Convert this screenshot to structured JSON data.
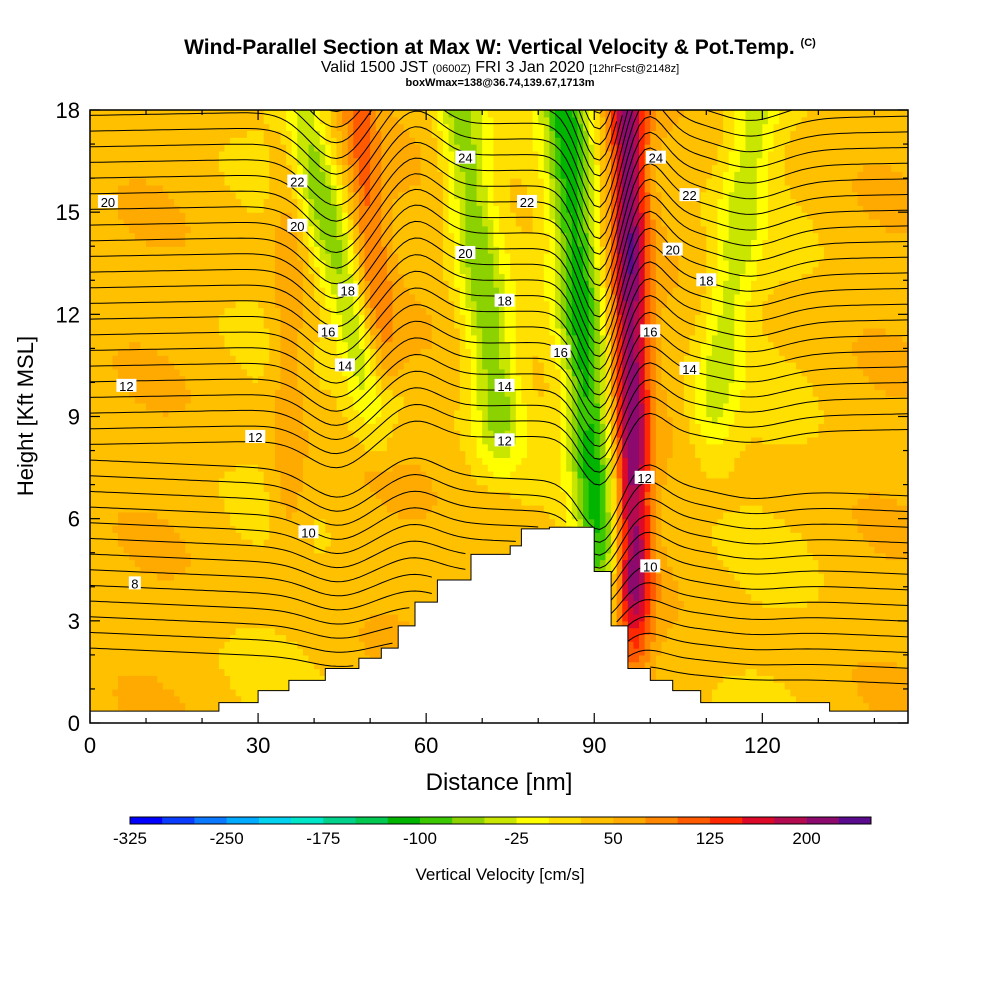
{
  "header": {
    "title": "Wind-Parallel Section at Max W: Vertical Velocity & Pot.Temp.",
    "copyright": "(C)",
    "valid_prefix": "Valid 1500 JST",
    "valid_zulu": "(0600Z)",
    "valid_date": "FRI 3 Jan 2020",
    "forecast": "[12hrFcst@2148z]",
    "boxinfo": "boxWmax=138@36.74,139.67,1713m"
  },
  "chart_data": {
    "type": "heatmap",
    "xlabel": "Distance [nm]",
    "ylabel": "Height [Kft MSL]",
    "xlim": [
      0,
      146
    ],
    "ylim": [
      0,
      18
    ],
    "x_ticks": [
      0,
      30,
      60,
      90,
      120
    ],
    "y_ticks": [
      0,
      3,
      6,
      9,
      12,
      15,
      18
    ],
    "grid": false,
    "colorbar": {
      "label": "Vertical Velocity [cm/s]",
      "levels": [
        -325,
        -300,
        -275,
        -250,
        -225,
        -200,
        -175,
        -150,
        -125,
        -100,
        -75,
        -50,
        -25,
        0,
        25,
        50,
        75,
        100,
        125,
        150,
        175,
        200,
        225
      ],
      "tick_labels": [
        "-325",
        "-250",
        "-175",
        "-100",
        "-25",
        "50",
        "125",
        "200"
      ],
      "colors": [
        "#0000ff",
        "#0a3cff",
        "#0a78ff",
        "#00aaff",
        "#00d2f0",
        "#00e6c8",
        "#00d28c",
        "#00c850",
        "#00b400",
        "#3cc800",
        "#8cd200",
        "#c8e600",
        "#ffff00",
        "#ffe000",
        "#ffc000",
        "#ffaa00",
        "#ff8800",
        "#ff5a00",
        "#ff2800",
        "#dc0a28",
        "#b40a50",
        "#8c0a6e",
        "#5a0a8c"
      ]
    },
    "velocity_features": [
      {
        "kind": "downdraft",
        "x_top": 37,
        "x_bottom": 51,
        "y_bottom": 9.5,
        "peak_cm_s": -60
      },
      {
        "kind": "updraft",
        "x_top": 48,
        "x_bottom": 52,
        "y_bottom": 10.0,
        "peak_cm_s": 100
      },
      {
        "kind": "downdraft",
        "x_top": 66,
        "x_bottom": 73,
        "y_bottom": 9.0,
        "peak_cm_s": -60
      },
      {
        "kind": "downdraft",
        "x_top": 85,
        "x_bottom": 91,
        "y_bottom": 5.0,
        "peak_cm_s": -110
      },
      {
        "kind": "updraft",
        "x_top": 96,
        "x_bottom": 97,
        "y_bottom": 4.0,
        "peak_cm_s": 210
      },
      {
        "kind": "downdraft",
        "x_top": 119,
        "x_bottom": 111,
        "y_bottom": 9.0,
        "peak_cm_s": -30
      },
      {
        "kind": "updraft",
        "x_top": 35.5,
        "x_bottom": 35.5,
        "y_bottom": 6.5,
        "peak_cm_s": 75
      }
    ],
    "terrain": [
      [
        0,
        0.35
      ],
      [
        23,
        0.35
      ],
      [
        23,
        0.6
      ],
      [
        30,
        0.6
      ],
      [
        30,
        0.95
      ],
      [
        35.5,
        0.95
      ],
      [
        35.5,
        1.25
      ],
      [
        42,
        1.25
      ],
      [
        42,
        1.6
      ],
      [
        48,
        1.6
      ],
      [
        48,
        1.9
      ],
      [
        52,
        1.9
      ],
      [
        52,
        2.2
      ],
      [
        55,
        2.2
      ],
      [
        55,
        2.85
      ],
      [
        58,
        2.85
      ],
      [
        58,
        3.55
      ],
      [
        62,
        3.55
      ],
      [
        62,
        4.2
      ],
      [
        68,
        4.2
      ],
      [
        68,
        4.95
      ],
      [
        75,
        4.95
      ],
      [
        75,
        5.2
      ],
      [
        77,
        5.2
      ],
      [
        77,
        5.7
      ],
      [
        82,
        5.7
      ],
      [
        82,
        5.75
      ],
      [
        90,
        5.75
      ],
      [
        90,
        4.45
      ],
      [
        93,
        4.45
      ],
      [
        93,
        2.85
      ],
      [
        96,
        2.85
      ],
      [
        96,
        1.6
      ],
      [
        100,
        1.6
      ],
      [
        100,
        1.25
      ],
      [
        104,
        1.25
      ],
      [
        104,
        0.95
      ],
      [
        109,
        0.95
      ],
      [
        109,
        0.6
      ],
      [
        132,
        0.6
      ],
      [
        132,
        0.35
      ],
      [
        146,
        0.35
      ]
    ],
    "theta_contour_labels": [
      {
        "text": "20",
        "x": 3.2,
        "y": 15.3
      },
      {
        "text": "22",
        "x": 37,
        "y": 15.9
      },
      {
        "text": "20",
        "x": 37,
        "y": 14.6
      },
      {
        "text": "18",
        "x": 46,
        "y": 12.7
      },
      {
        "text": "16",
        "x": 42.5,
        "y": 11.5
      },
      {
        "text": "14",
        "x": 45.5,
        "y": 10.5
      },
      {
        "text": "12",
        "x": 6.5,
        "y": 9.9
      },
      {
        "text": "12",
        "x": 29.5,
        "y": 8.4
      },
      {
        "text": "10",
        "x": 39,
        "y": 5.6
      },
      {
        "text": "8",
        "x": 8,
        "y": 4.1
      },
      {
        "text": "24",
        "x": 67,
        "y": 16.6
      },
      {
        "text": "22",
        "x": 78,
        "y": 15.3
      },
      {
        "text": "20",
        "x": 67,
        "y": 13.8
      },
      {
        "text": "18",
        "x": 74,
        "y": 12.4
      },
      {
        "text": "16",
        "x": 84,
        "y": 10.9
      },
      {
        "text": "14",
        "x": 74,
        "y": 9.9
      },
      {
        "text": "12",
        "x": 74,
        "y": 8.3
      },
      {
        "text": "24",
        "x": 101,
        "y": 16.6
      },
      {
        "text": "22",
        "x": 107,
        "y": 15.5
      },
      {
        "text": "20",
        "x": 104,
        "y": 13.9
      },
      {
        "text": "18",
        "x": 110,
        "y": 13.0
      },
      {
        "text": "16",
        "x": 100,
        "y": 11.5
      },
      {
        "text": "14",
        "x": 107,
        "y": 10.4
      },
      {
        "text": "12",
        "x": 99,
        "y": 7.2
      },
      {
        "text": "10",
        "x": 100,
        "y": 4.6
      }
    ]
  }
}
